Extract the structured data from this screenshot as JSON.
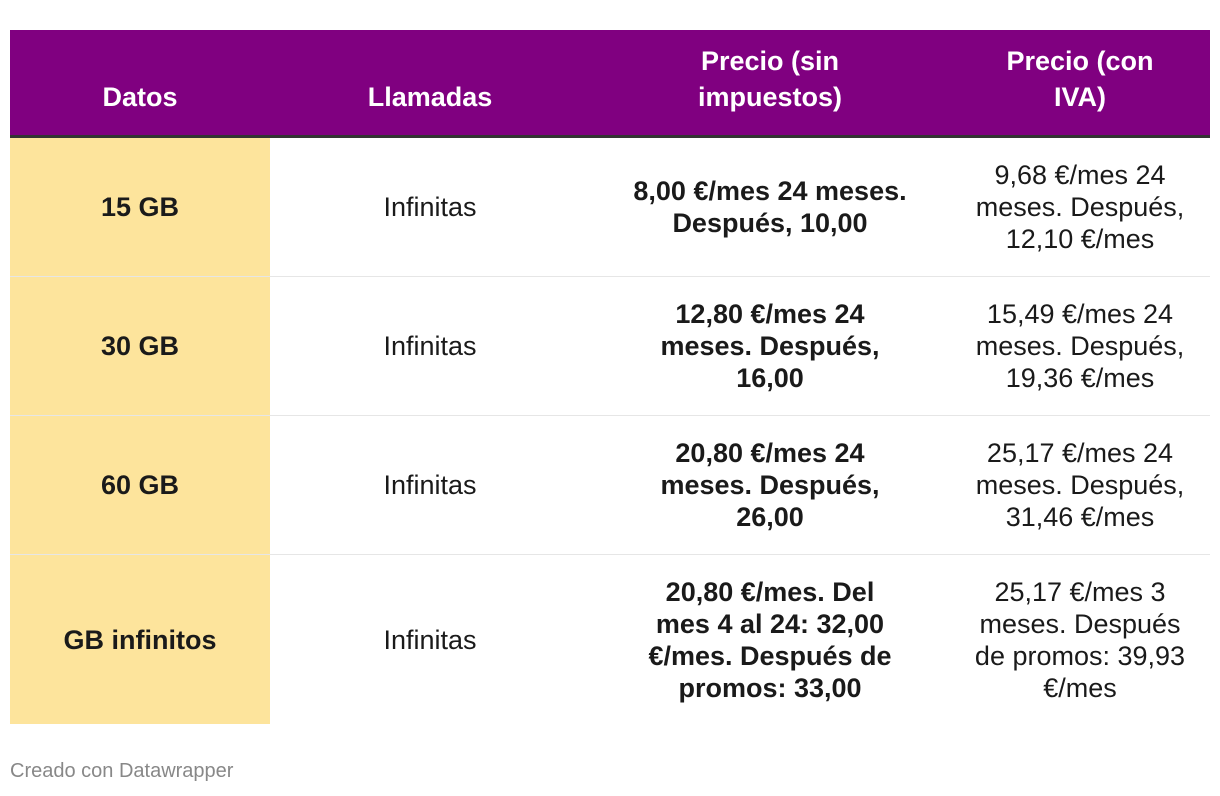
{
  "table": {
    "headers": [
      "Datos",
      "Llamadas",
      "Precio (sin impuestos)",
      "Precio (con IVA)"
    ],
    "rows": [
      [
        "15 GB",
        "Infinitas",
        "8,00 €/mes 24 meses. Después, 10,00",
        "9,68 €/mes 24 meses. Después, 12,10 €/mes"
      ],
      [
        "30 GB",
        "Infinitas",
        "12,80 €/mes 24 meses. Después, 16,00",
        "15,49 €/mes 24 meses. Después, 19,36 €/mes"
      ],
      [
        "60 GB",
        "Infinitas",
        "20,80 €/mes 24 meses. Después, 26,00",
        "25,17 €/mes 24 meses. Después, 31,46 €/mes"
      ],
      [
        "GB infinitos",
        "Infinitas",
        "20,80 €/mes. Del mes 4 al 24: 32,00 €/mes. Después de promos: 33,00",
        "25,17 €/mes 3 meses. Después de promos: 39,93 €/mes"
      ]
    ]
  },
  "colors": {
    "header_bg": "#800080",
    "highlight_col": "#fde49c"
  },
  "footer": {
    "credit": "Creado con Datawrapper"
  }
}
